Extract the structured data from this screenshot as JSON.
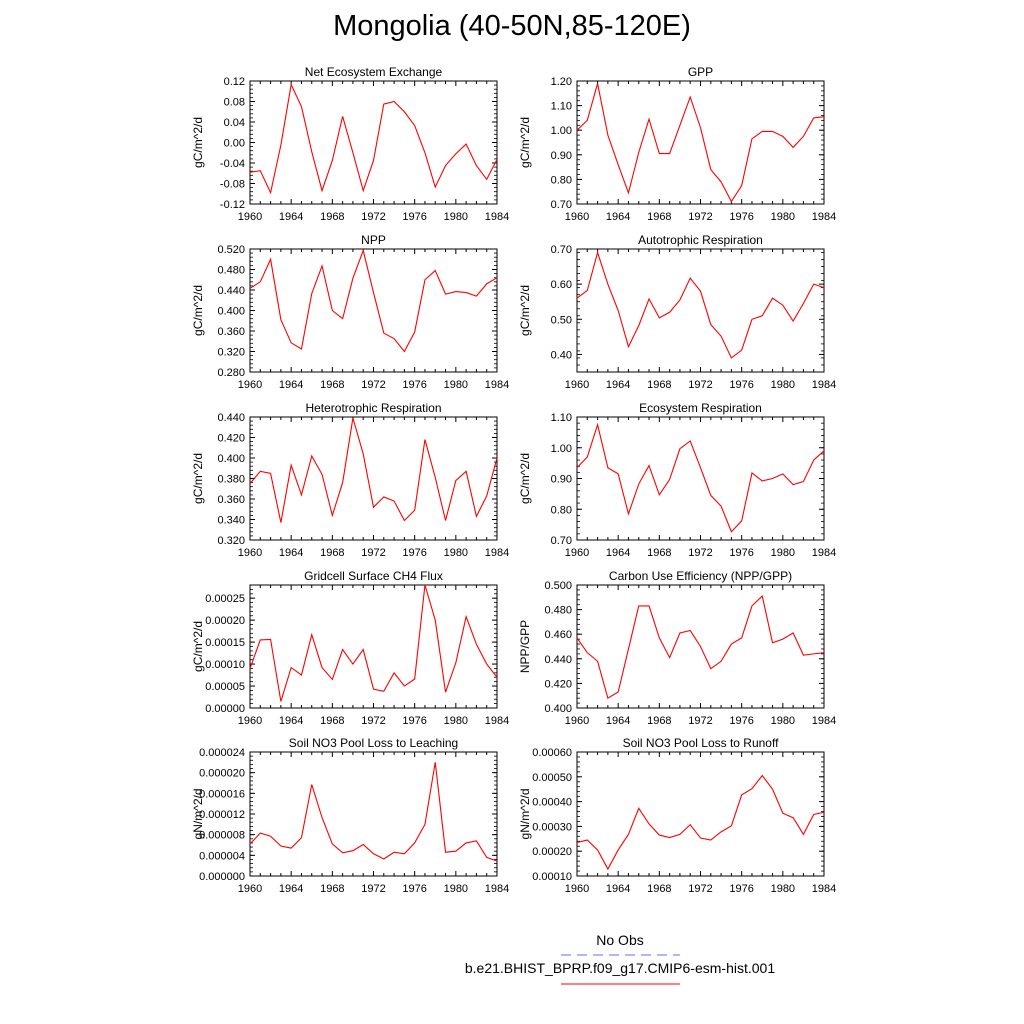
{
  "title": "Mongolia (40-50N,85-120E)",
  "line_color": "#ff0000",
  "obs_color": "#6a6ae0",
  "legend": {
    "obs_label": "No Obs",
    "model_label": "b.e21.BHIST_BPRP.f09_g17.CMIP6-esm-hist.001"
  },
  "chart_data": [
    {
      "type": "line",
      "title": "Net Ecosystem Exchange",
      "ylabel": "gC/m^2/d",
      "x": [
        1960,
        1961,
        1962,
        1963,
        1964,
        1965,
        1966,
        1967,
        1968,
        1969,
        1970,
        1971,
        1972,
        1973,
        1974,
        1975,
        1976,
        1977,
        1978,
        1979,
        1980,
        1981,
        1982,
        1983,
        1984
      ],
      "values": [
        -0.058,
        -0.055,
        -0.098,
        -0.005,
        0.113,
        0.07,
        -0.018,
        -0.094,
        -0.035,
        0.051,
        -0.02,
        -0.094,
        -0.035,
        0.075,
        0.08,
        0.06,
        0.033,
        -0.02,
        -0.087,
        -0.045,
        -0.022,
        -0.003,
        -0.045,
        -0.072,
        -0.033
      ],
      "xlim": [
        1960,
        1984
      ],
      "ylim": [
        -0.12,
        0.12
      ],
      "xticks": [
        "1960",
        "1964",
        "1968",
        "1972",
        "1976",
        "1980",
        "1984"
      ],
      "yticks": [
        "-0.12",
        "-0.08",
        "-0.04",
        "0.00",
        "0.04",
        "0.08",
        "0.12"
      ]
    },
    {
      "type": "line",
      "title": "GPP",
      "ylabel": "gC/m^2/d",
      "x": [
        1960,
        1961,
        1962,
        1963,
        1964,
        1965,
        1966,
        1967,
        1968,
        1969,
        1970,
        1971,
        1972,
        1973,
        1974,
        1975,
        1976,
        1977,
        1978,
        1979,
        1980,
        1981,
        1982,
        1983,
        1984
      ],
      "values": [
        1.0,
        1.04,
        1.19,
        0.98,
        0.86,
        0.745,
        0.91,
        1.045,
        0.905,
        0.905,
        1.02,
        1.135,
        1.01,
        0.84,
        0.79,
        0.71,
        0.775,
        0.965,
        0.995,
        0.995,
        0.975,
        0.93,
        0.975,
        1.05,
        1.055
      ],
      "xlim": [
        1960,
        1984
      ],
      "ylim": [
        0.7,
        1.2
      ],
      "xticks": [
        "1960",
        "1964",
        "1968",
        "1972",
        "1976",
        "1980",
        "1984"
      ],
      "yticks": [
        "0.70",
        "0.80",
        "0.90",
        "1.00",
        "1.10",
        "1.20"
      ]
    },
    {
      "type": "line",
      "title": "NPP",
      "ylabel": "gC/m^2/d",
      "x": [
        1960,
        1961,
        1962,
        1963,
        1964,
        1965,
        1966,
        1967,
        1968,
        1969,
        1970,
        1971,
        1972,
        1973,
        1974,
        1975,
        1976,
        1977,
        1978,
        1979,
        1980,
        1981,
        1982,
        1983,
        1984
      ],
      "values": [
        0.443,
        0.456,
        0.5,
        0.382,
        0.337,
        0.325,
        0.433,
        0.487,
        0.4,
        0.384,
        0.463,
        0.517,
        0.435,
        0.356,
        0.345,
        0.32,
        0.358,
        0.46,
        0.478,
        0.432,
        0.437,
        0.435,
        0.428,
        0.452,
        0.464
      ],
      "xlim": [
        1960,
        1984
      ],
      "ylim": [
        0.28,
        0.52
      ],
      "xticks": [
        "1960",
        "1964",
        "1968",
        "1972",
        "1976",
        "1980",
        "1984"
      ],
      "yticks": [
        "0.280",
        "0.320",
        "0.360",
        "0.400",
        "0.440",
        "0.480",
        "0.520"
      ]
    },
    {
      "type": "line",
      "title": "Autotrophic Respiration",
      "ylabel": "gC/m^2/d",
      "x": [
        1960,
        1961,
        1962,
        1963,
        1964,
        1965,
        1966,
        1967,
        1968,
        1969,
        1970,
        1971,
        1972,
        1973,
        1974,
        1975,
        1976,
        1977,
        1978,
        1979,
        1980,
        1981,
        1982,
        1983,
        1984
      ],
      "values": [
        0.56,
        0.582,
        0.69,
        0.6,
        0.525,
        0.422,
        0.482,
        0.558,
        0.504,
        0.52,
        0.555,
        0.617,
        0.58,
        0.485,
        0.452,
        0.39,
        0.412,
        0.5,
        0.51,
        0.56,
        0.54,
        0.495,
        0.545,
        0.6,
        0.59
      ],
      "xlim": [
        1960,
        1984
      ],
      "ylim": [
        0.35,
        0.7
      ],
      "xticks": [
        "1960",
        "1964",
        "1968",
        "1972",
        "1976",
        "1980",
        "1984"
      ],
      "yticks": [
        "0.40",
        "0.50",
        "0.60",
        "0.70"
      ]
    },
    {
      "type": "line",
      "title": "Heterotrophic Respiration",
      "ylabel": "gC/m^2/d",
      "x": [
        1960,
        1961,
        1962,
        1963,
        1964,
        1965,
        1966,
        1967,
        1968,
        1969,
        1970,
        1971,
        1972,
        1973,
        1974,
        1975,
        1976,
        1977,
        1978,
        1979,
        1980,
        1981,
        1982,
        1983,
        1984
      ],
      "values": [
        0.375,
        0.387,
        0.385,
        0.337,
        0.393,
        0.364,
        0.402,
        0.384,
        0.344,
        0.376,
        0.439,
        0.404,
        0.352,
        0.362,
        0.358,
        0.339,
        0.349,
        0.418,
        0.381,
        0.339,
        0.378,
        0.387,
        0.343,
        0.363,
        0.4
      ],
      "xlim": [
        1960,
        1984
      ],
      "ylim": [
        0.32,
        0.44
      ],
      "xticks": [
        "1960",
        "1964",
        "1968",
        "1972",
        "1976",
        "1980",
        "1984"
      ],
      "yticks": [
        "0.320",
        "0.340",
        "0.360",
        "0.380",
        "0.400",
        "0.420",
        "0.440"
      ]
    },
    {
      "type": "line",
      "title": "Ecosystem Respiration",
      "ylabel": "gC/m^2/d",
      "x": [
        1960,
        1961,
        1962,
        1963,
        1964,
        1965,
        1966,
        1967,
        1968,
        1969,
        1970,
        1971,
        1972,
        1973,
        1974,
        1975,
        1976,
        1977,
        1978,
        1979,
        1980,
        1981,
        1982,
        1983,
        1984
      ],
      "values": [
        0.935,
        0.97,
        1.075,
        0.935,
        0.915,
        0.785,
        0.882,
        0.942,
        0.847,
        0.897,
        0.997,
        1.022,
        0.935,
        0.845,
        0.81,
        0.727,
        0.762,
        0.918,
        0.892,
        0.9,
        0.915,
        0.88,
        0.89,
        0.96,
        0.99
      ],
      "xlim": [
        1960,
        1984
      ],
      "ylim": [
        0.7,
        1.1
      ],
      "xticks": [
        "1960",
        "1964",
        "1968",
        "1972",
        "1976",
        "1980",
        "1984"
      ],
      "yticks": [
        "0.70",
        "0.80",
        "0.90",
        "1.00",
        "1.10"
      ]
    },
    {
      "type": "line",
      "title": "Gridcell Surface CH4 Flux",
      "ylabel": "gC/m^2/d",
      "x": [
        1960,
        1961,
        1962,
        1963,
        1964,
        1965,
        1966,
        1967,
        1968,
        1969,
        1970,
        1971,
        1972,
        1973,
        1974,
        1975,
        1976,
        1977,
        1978,
        1979,
        1980,
        1981,
        1982,
        1983,
        1984
      ],
      "values": [
        9e-05,
        0.000155,
        0.000156,
        1.5e-05,
        9.2e-05,
        7.5e-05,
        0.000167,
        9.2e-05,
        6.5e-05,
        0.000133,
        0.0001,
        0.000133,
        4.3e-05,
        3.8e-05,
        8e-05,
        5e-05,
        6.6e-05,
        0.00028,
        0.0002,
        3.6e-05,
        0.000103,
        0.000208,
        0.000145,
        0.0001,
        7e-05
      ],
      "xlim": [
        1960,
        1984
      ],
      "ylim": [
        0,
        0.00028
      ],
      "xticks": [
        "1960",
        "1964",
        "1968",
        "1972",
        "1976",
        "1980",
        "1984"
      ],
      "yticks": [
        "0.00000",
        "0.00005",
        "0.00010",
        "0.00015",
        "0.00020",
        "0.00025"
      ]
    },
    {
      "type": "line",
      "title": "Carbon Use Efficiency (NPP/GPP)",
      "ylabel": "NPP/GPP",
      "x": [
        1960,
        1961,
        1962,
        1963,
        1964,
        1965,
        1966,
        1967,
        1968,
        1969,
        1970,
        1971,
        1972,
        1973,
        1974,
        1975,
        1976,
        1977,
        1978,
        1979,
        1980,
        1981,
        1982,
        1983,
        1984
      ],
      "values": [
        0.457,
        0.445,
        0.438,
        0.408,
        0.413,
        0.448,
        0.483,
        0.483,
        0.457,
        0.441,
        0.461,
        0.463,
        0.45,
        0.432,
        0.438,
        0.452,
        0.457,
        0.483,
        0.491,
        0.453,
        0.456,
        0.461,
        0.443,
        0.444,
        0.445
      ],
      "xlim": [
        1960,
        1984
      ],
      "ylim": [
        0.4,
        0.5
      ],
      "xticks": [
        "1960",
        "1964",
        "1968",
        "1972",
        "1976",
        "1980",
        "1984"
      ],
      "yticks": [
        "0.400",
        "0.420",
        "0.440",
        "0.460",
        "0.480",
        "0.500"
      ]
    },
    {
      "type": "line",
      "title": "Soil NO3 Pool Loss to Leaching",
      "ylabel": "gN/m^2/d",
      "x": [
        1960,
        1961,
        1962,
        1963,
        1964,
        1965,
        1966,
        1967,
        1968,
        1969,
        1970,
        1971,
        1972,
        1973,
        1974,
        1975,
        1976,
        1977,
        1978,
        1979,
        1980,
        1981,
        1982,
        1983,
        1984
      ],
      "values": [
        6.2e-06,
        8.3e-06,
        7.7e-06,
        5.8e-06,
        5.4e-06,
        7.4e-06,
        1.77e-05,
        1.13e-05,
        6.2e-06,
        4.5e-06,
        4.9e-06,
        6.1e-06,
        4.3e-06,
        3.3e-06,
        4.6e-06,
        4.3e-06,
        6.4e-06,
        1e-05,
        2.2e-05,
        4.6e-06,
        4.8e-06,
        6.4e-06,
        6.8e-06,
        3.6e-06,
        2.9e-06
      ],
      "xlim": [
        1960,
        1984
      ],
      "ylim": [
        0,
        2.4e-05
      ],
      "xticks": [
        "1960",
        "1964",
        "1968",
        "1972",
        "1976",
        "1980",
        "1984"
      ],
      "yticks": [
        "0.000000",
        "0.000004",
        "0.000008",
        "0.000012",
        "0.000016",
        "0.000020",
        "0.000024"
      ]
    },
    {
      "type": "line",
      "title": "Soil NO3 Pool Loss to Runoff",
      "ylabel": "gN/m^2/d",
      "x": [
        1960,
        1961,
        1962,
        1963,
        1964,
        1965,
        1966,
        1967,
        1968,
        1969,
        1970,
        1971,
        1972,
        1973,
        1974,
        1975,
        1976,
        1977,
        1978,
        1979,
        1980,
        1981,
        1982,
        1983,
        1984
      ],
      "values": [
        0.000235,
        0.000245,
        0.000205,
        0.000128,
        0.000205,
        0.000268,
        0.000373,
        0.00031,
        0.000265,
        0.000255,
        0.000268,
        0.000307,
        0.000253,
        0.000245,
        0.000278,
        0.000302,
        0.000427,
        0.000452,
        0.000505,
        0.00045,
        0.000353,
        0.000335,
        0.000268,
        0.000348,
        0.000357
      ],
      "xlim": [
        1960,
        1984
      ],
      "ylim": [
        0.0001,
        0.0006
      ],
      "xticks": [
        "1960",
        "1964",
        "1968",
        "1972",
        "1976",
        "1980",
        "1984"
      ],
      "yticks": [
        "0.00010",
        "0.00020",
        "0.00030",
        "0.00040",
        "0.00050",
        "0.00060"
      ]
    }
  ]
}
